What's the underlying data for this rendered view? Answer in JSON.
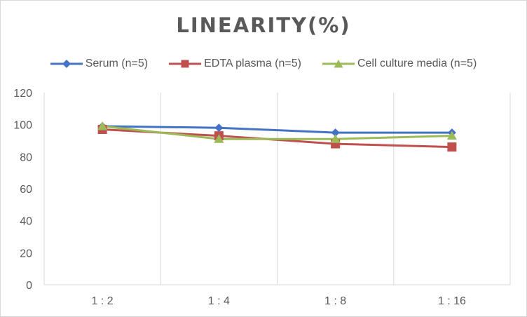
{
  "chart_data": {
    "type": "line",
    "title": "LINEARITY(%)",
    "xlabel": "",
    "ylabel": "",
    "categories": [
      "1:2",
      "1:4",
      "1:8",
      "1:16"
    ],
    "ylim": [
      0,
      120
    ],
    "yticks": [
      0,
      20,
      40,
      60,
      80,
      100,
      120
    ],
    "grid": "vertical",
    "legend_position": "top",
    "series": [
      {
        "name": "Serum (n=5)",
        "values": [
          99,
          98,
          95,
          95
        ],
        "color": "#4472c4",
        "marker": "diamond"
      },
      {
        "name": "EDTA plasma (n=5)",
        "values": [
          97,
          93,
          88,
          86
        ],
        "color": "#c0504d",
        "marker": "square"
      },
      {
        "name": "Cell culture media (n=5)",
        "values": [
          99,
          91,
          91,
          93
        ],
        "color": "#9bbb59",
        "marker": "triangle"
      }
    ]
  }
}
